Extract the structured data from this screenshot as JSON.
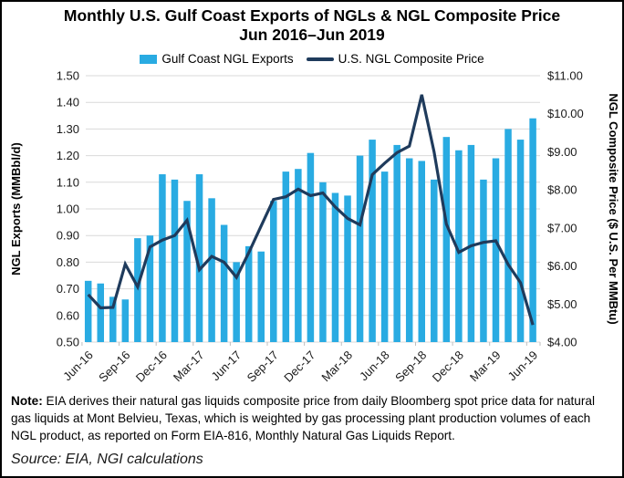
{
  "title": {
    "line1": "Monthly U.S. Gulf Coast Exports of NGLs & NGL Composite Price",
    "line2": "Jun 2016–Jun 2019"
  },
  "legend": {
    "bar_label": "Gulf Coast NGL Exports",
    "line_label": "U.S. NGL Composite Price"
  },
  "colors": {
    "bar": "#29ABE2",
    "line": "#1F3B5C",
    "grid": "#D9D9D9",
    "tick_text": "#1a1a1a",
    "border": "#000000"
  },
  "chart_data": {
    "type": "bar",
    "combo": [
      "bar",
      "line"
    ],
    "title": "Monthly U.S. Gulf Coast Exports of NGLs & NGL Composite Price Jun 2016–Jun 2019",
    "categories": [
      "Jun-16",
      "Jul-16",
      "Aug-16",
      "Sep-16",
      "Oct-16",
      "Nov-16",
      "Dec-16",
      "Jan-17",
      "Feb-17",
      "Mar-17",
      "Apr-17",
      "May-17",
      "Jun-17",
      "Jul-17",
      "Aug-17",
      "Sep-17",
      "Oct-17",
      "Nov-17",
      "Dec-17",
      "Jan-18",
      "Feb-18",
      "Mar-18",
      "Apr-18",
      "May-18",
      "Jun-18",
      "Jul-18",
      "Aug-18",
      "Sep-18",
      "Oct-18",
      "Nov-18",
      "Dec-18",
      "Jan-19",
      "Feb-19",
      "Mar-19",
      "Apr-19",
      "May-19",
      "Jun-19"
    ],
    "x_tick_labels": [
      "Jun-16",
      "Sep-16",
      "Dec-16",
      "Mar-17",
      "Jun-17",
      "Sep-17",
      "Dec-17",
      "Mar-18",
      "Jun-18",
      "Sep-18",
      "Dec-18",
      "Mar-19",
      "Jun-19"
    ],
    "series": [
      {
        "name": "Gulf Coast NGL Exports",
        "type": "bar",
        "axis": "left",
        "values": [
          0.73,
          0.72,
          0.67,
          0.66,
          0.89,
          0.9,
          1.13,
          1.11,
          1.03,
          1.13,
          1.04,
          0.94,
          0.8,
          0.86,
          0.84,
          1.03,
          1.14,
          1.15,
          1.21,
          1.1,
          1.06,
          1.05,
          1.2,
          1.26,
          1.14,
          1.24,
          1.19,
          1.18,
          1.11,
          1.27,
          1.22,
          1.24,
          1.11,
          1.19,
          1.3,
          1.26,
          1.34
        ]
      },
      {
        "name": "U.S. NGL Composite Price",
        "type": "line",
        "axis": "right",
        "values": [
          5.25,
          4.9,
          4.91,
          6.05,
          5.45,
          6.5,
          6.68,
          6.8,
          7.2,
          5.9,
          6.25,
          6.1,
          5.7,
          6.35,
          7.05,
          7.75,
          7.82,
          8.02,
          7.85,
          7.92,
          7.55,
          7.25,
          7.08,
          8.4,
          8.7,
          8.98,
          9.15,
          10.5,
          9.0,
          7.1,
          6.36,
          6.53,
          6.62,
          6.66,
          6.04,
          5.56,
          4.45
        ]
      }
    ],
    "left_axis": {
      "title": "NGL Exports (MMBbl/d)",
      "min": 0.5,
      "max": 1.5,
      "step": 0.1
    },
    "right_axis": {
      "title": "NGL Composite Price ($ U.S. Per MMBtu)",
      "min": 4.0,
      "max": 11.0,
      "step": 1.0
    },
    "grid": true,
    "legend_position": "top"
  },
  "note": {
    "label": "Note:",
    "text": " EIA derives their natural gas liquids composite price from daily Bloomberg spot price data for natural gas liquids at Mont Belvieu, Texas, which is weighted by gas processing plant production volumes of each NGL product, as reported on Form EIA-816, Monthly Natural Gas Liquids Report."
  },
  "source": "Source: EIA, NGI calculations"
}
